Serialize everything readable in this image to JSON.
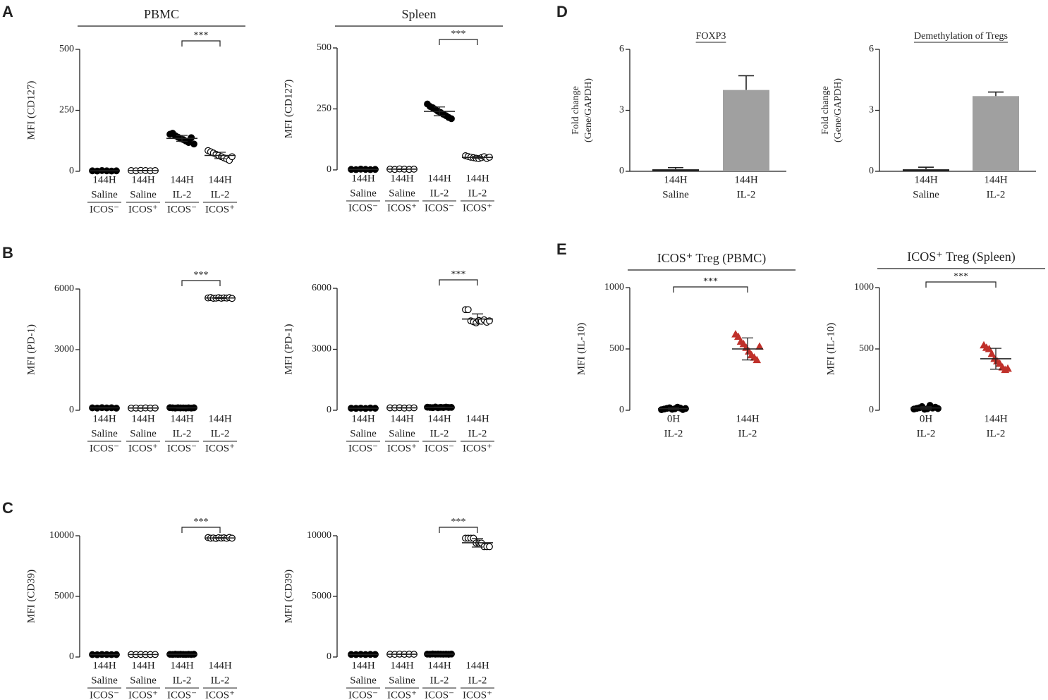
{
  "chart_data": [
    {
      "type": "scatter",
      "panel": "A",
      "title": "PBMC",
      "ylabel": "MFI (CD127)",
      "ylim": [
        0,
        500
      ],
      "yticks": [
        0,
        250,
        500
      ],
      "categories": [
        [
          "144H",
          "Saline",
          "ICOS⁻"
        ],
        [
          "144H",
          "Saline",
          "ICOS⁺"
        ],
        [
          "144H",
          "IL-2",
          "ICOS⁻"
        ],
        [
          "144H",
          "IL-2",
          "ICOS⁺"
        ]
      ],
      "points": [
        [
          2,
          1,
          3,
          2,
          1,
          2
        ],
        [
          3,
          2,
          4,
          3,
          2,
          3
        ],
        [
          152,
          156,
          146,
          140,
          134,
          130,
          124,
          118,
          138,
          112
        ],
        [
          85,
          80,
          75,
          70,
          65,
          60,
          55,
          50,
          45,
          60
        ]
      ],
      "means": [
        2,
        3,
        135,
        65
      ],
      "errors": [
        1,
        1,
        12,
        13
      ],
      "markers": [
        "circle",
        "circle",
        "circle",
        "circle"
      ],
      "filled": [
        true,
        false,
        true,
        false
      ],
      "marker_colors": [
        "#000000",
        "#000000",
        "#000000",
        "#000000"
      ],
      "significance": {
        "label": "***",
        "between": [
          2,
          3
        ]
      }
    },
    {
      "type": "scatter",
      "title": "Spleen",
      "ylabel": "MFI (CD127)",
      "ylim": [
        0,
        500
      ],
      "yticks": [
        0,
        250,
        500
      ],
      "categories": [
        [
          "144H",
          "Saline",
          "ICOS⁻"
        ],
        [
          "144H",
          "Saline",
          "ICOS⁺"
        ],
        [
          "144H",
          "IL-2",
          "ICOS⁻"
        ],
        [
          "144H",
          "IL-2",
          "ICOS⁺"
        ]
      ],
      "points": [
        [
          2,
          1,
          3,
          2,
          1,
          2
        ],
        [
          3,
          2,
          4,
          3,
          2,
          3
        ],
        [
          270,
          260,
          255,
          248,
          240,
          235,
          228,
          222,
          215,
          210
        ],
        [
          58,
          55,
          52,
          50,
          48,
          46,
          50,
          54,
          47,
          52
        ]
      ],
      "means": [
        2,
        3,
        240,
        51
      ],
      "errors": [
        1,
        1,
        18,
        4
      ],
      "markers": [
        "circle",
        "circle",
        "circle",
        "circle"
      ],
      "filled": [
        true,
        false,
        true,
        false
      ],
      "marker_colors": [
        "#000000",
        "#000000",
        "#000000",
        "#000000"
      ],
      "significance": {
        "label": "***",
        "between": [
          2,
          3
        ]
      }
    },
    {
      "type": "scatter",
      "panel": "B",
      "ylabel": "MFI (PD-1)",
      "ylim": [
        0,
        6000
      ],
      "yticks": [
        0,
        3000,
        6000
      ],
      "categories": [
        [
          "144H",
          "Saline",
          "ICOS⁻"
        ],
        [
          "144H",
          "Saline",
          "ICOS⁺"
        ],
        [
          "144H",
          "IL-2",
          "ICOS⁻"
        ],
        [
          "144H",
          "IL-2",
          "ICOS⁺"
        ]
      ],
      "points": [
        [
          120,
          110,
          130,
          115,
          125,
          105
        ],
        [
          105,
          110,
          100,
          115,
          108,
          112
        ],
        [
          130,
          120,
          110,
          125,
          115,
          118,
          112,
          122,
          108,
          125
        ],
        [
          5560,
          5580,
          5540,
          5550,
          5570,
          5545,
          5565,
          5555,
          5575,
          5535
        ]
      ],
      "means": [
        118,
        110,
        119,
        5558
      ],
      "errors": [
        10,
        10,
        12,
        30
      ],
      "markers": [
        "circle",
        "circle",
        "circle",
        "circle"
      ],
      "filled": [
        true,
        false,
        true,
        false
      ],
      "marker_colors": [
        "#000000",
        "#000000",
        "#000000",
        "#000000"
      ],
      "significance": {
        "label": "***",
        "between": [
          2,
          3
        ]
      }
    },
    {
      "type": "scatter",
      "ylabel": "MFI (PD-1)",
      "ylim": [
        0,
        6000
      ],
      "yticks": [
        0,
        3000,
        6000
      ],
      "categories": [
        [
          "144H",
          "Saline",
          "ICOS⁻"
        ],
        [
          "144H",
          "Saline",
          "ICOS⁺"
        ],
        [
          "144H",
          "IL-2",
          "ICOS⁻"
        ],
        [
          "144H",
          "IL-2",
          "ICOS⁺"
        ]
      ],
      "points": [
        [
          100,
          95,
          105,
          90,
          110,
          98
        ],
        [
          120,
          115,
          125,
          110,
          118,
          122
        ],
        [
          150,
          140,
          130,
          160,
          125,
          145,
          135,
          155,
          138,
          142
        ],
        [
          4950,
          4950,
          4400,
          4350,
          4300,
          4420,
          4380,
          4450,
          4330,
          4400
        ]
      ],
      "means": [
        100,
        118,
        142,
        4490
      ],
      "errors": [
        10,
        10,
        12,
        250
      ],
      "markers": [
        "circle",
        "circle",
        "circle",
        "circle"
      ],
      "filled": [
        true,
        false,
        true,
        false
      ],
      "marker_colors": [
        "#000000",
        "#000000",
        "#000000",
        "#000000"
      ],
      "significance": {
        "label": "***",
        "between": [
          2,
          3
        ]
      }
    },
    {
      "type": "scatter",
      "panel": "C",
      "ylabel": "MFI (CD39)",
      "ylim": [
        0,
        10000
      ],
      "yticks": [
        0,
        5000,
        10000
      ],
      "categories": [
        [
          "144H",
          "Saline",
          "ICOS⁻"
        ],
        [
          "144H",
          "Saline",
          "ICOS⁺"
        ],
        [
          "144H",
          "IL-2",
          "ICOS⁻"
        ],
        [
          "144H",
          "IL-2",
          "ICOS⁺"
        ]
      ],
      "points": [
        [
          200,
          190,
          210,
          205,
          195,
          200
        ],
        [
          210,
          205,
          215,
          200,
          208,
          212
        ],
        [
          220,
          210,
          230,
          215,
          225,
          218,
          212,
          222,
          208,
          228
        ],
        [
          9850,
          9800,
          9820,
          9780,
          9840,
          9810,
          9830,
          9790,
          9860,
          9800
        ]
      ],
      "means": [
        200,
        208,
        219,
        9818
      ],
      "errors": [
        10,
        10,
        10,
        30
      ],
      "markers": [
        "circle",
        "circle",
        "circle",
        "circle"
      ],
      "filled": [
        true,
        false,
        true,
        false
      ],
      "marker_colors": [
        "#000000",
        "#000000",
        "#000000",
        "#000000"
      ],
      "significance": {
        "label": "***",
        "between": [
          2,
          3
        ]
      }
    },
    {
      "type": "scatter",
      "ylabel": "MFI (CD39)",
      "ylim": [
        0,
        10000
      ],
      "yticks": [
        0,
        5000,
        10000
      ],
      "categories": [
        [
          "144H",
          "Saline",
          "ICOS⁻"
        ],
        [
          "144H",
          "Saline",
          "ICOS⁺"
        ],
        [
          "144H",
          "IL-2",
          "ICOS⁻"
        ],
        [
          "144H",
          "IL-2",
          "ICOS⁺"
        ]
      ],
      "points": [
        [
          210,
          200,
          220,
          205,
          215,
          210
        ],
        [
          230,
          220,
          240,
          225,
          235,
          228
        ],
        [
          240,
          230,
          250,
          235,
          245,
          238,
          232,
          242,
          228,
          248
        ],
        [
          9800,
          9800,
          9800,
          9800,
          9400,
          9400,
          9400,
          9100,
          9100,
          9100
        ]
      ],
      "means": [
        210,
        230,
        239,
        9420
      ],
      "errors": [
        10,
        10,
        10,
        350
      ],
      "markers": [
        "circle",
        "circle",
        "circle",
        "circle"
      ],
      "filled": [
        true,
        false,
        true,
        false
      ],
      "marker_colors": [
        "#000000",
        "#000000",
        "#000000",
        "#000000"
      ],
      "significance": {
        "label": "***",
        "between": [
          2,
          3
        ]
      }
    },
    {
      "type": "bar",
      "panel": "D",
      "title": "FOXP3",
      "ylabel": [
        "Fold change",
        "(Gene/GAPDH)"
      ],
      "ylim": [
        0,
        6
      ],
      "yticks": [
        0,
        3,
        6
      ],
      "categories": [
        [
          "144H",
          "Saline"
        ],
        [
          "144H",
          "IL-2"
        ]
      ],
      "values": [
        0.1,
        4.0
      ],
      "errors": [
        0.08,
        0.7
      ],
      "color": "#a0a0a0"
    },
    {
      "type": "bar",
      "title": "Demethylation of Tregs",
      "ylabel": [
        "Fold change",
        "(Gene/GAPDH)"
      ],
      "ylim": [
        0,
        6
      ],
      "yticks": [
        0,
        3,
        6
      ],
      "categories": [
        [
          "144H",
          "Saline"
        ],
        [
          "144H",
          "IL-2"
        ]
      ],
      "values": [
        0.1,
        3.7
      ],
      "errors": [
        0.1,
        0.2
      ],
      "color": "#a0a0a0"
    },
    {
      "type": "scatter",
      "panel": "E",
      "title": "ICOS⁺ Treg (PBMC)",
      "ylabel": "MFI (IL-10)",
      "ylim": [
        0,
        1000
      ],
      "yticks": [
        0,
        500,
        1000
      ],
      "categories": [
        [
          "0H",
          "IL-2"
        ],
        [
          "144H",
          "IL-2"
        ]
      ],
      "points": [
        [
          5,
          10,
          15,
          20,
          8,
          12,
          25,
          18,
          6,
          14
        ],
        [
          620,
          600,
          560,
          540,
          510,
          480,
          450,
          430,
          410,
          520
        ]
      ],
      "means": [
        13,
        500
      ],
      "errors": [
        6,
        90
      ],
      "markers": [
        "circle",
        "triangle"
      ],
      "filled": [
        true,
        true
      ],
      "marker_colors": [
        "#000000",
        "#c0302a"
      ],
      "significance": {
        "label": "***",
        "between": [
          0,
          1
        ]
      }
    },
    {
      "type": "scatter",
      "title": "ICOS⁺ Treg (Spleen)",
      "ylabel": "MFI (IL-10)",
      "ylim": [
        0,
        1000
      ],
      "yticks": [
        0,
        500,
        1000
      ],
      "categories": [
        [
          "0H",
          "IL-2"
        ],
        [
          "144H",
          "IL-2"
        ]
      ],
      "points": [
        [
          10,
          15,
          20,
          30,
          8,
          12,
          40,
          18,
          25,
          14
        ],
        [
          530,
          510,
          500,
          460,
          420,
          400,
          380,
          350,
          330,
          340
        ]
      ],
      "means": [
        19,
        420
      ],
      "errors": [
        10,
        85
      ],
      "markers": [
        "circle",
        "triangle"
      ],
      "filled": [
        true,
        true
      ],
      "marker_colors": [
        "#000000",
        "#c0302a"
      ],
      "significance": {
        "label": "***",
        "between": [
          0,
          1
        ]
      }
    }
  ]
}
